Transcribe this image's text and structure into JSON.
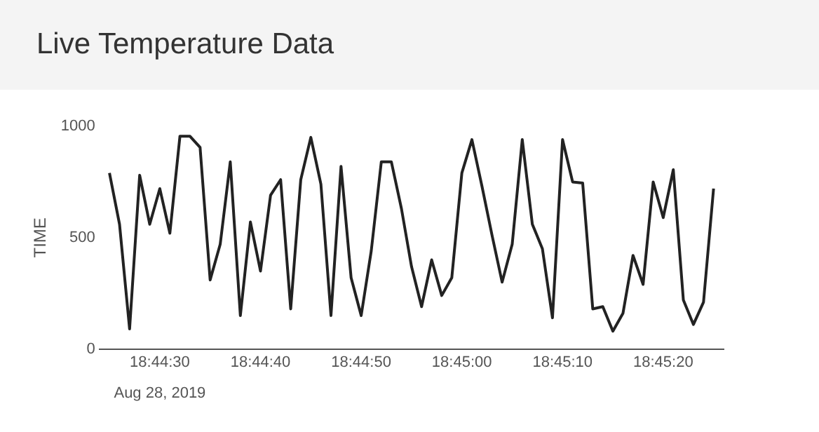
{
  "chart_data": {
    "type": "line",
    "title": "Live Temperature Data",
    "ylabel": "TIME",
    "annotations": [
      "Aug 28, 2019"
    ],
    "x": [
      "2019-08-28T18:44:25",
      "2019-08-28T18:44:26",
      "2019-08-28T18:44:27",
      "2019-08-28T18:44:28",
      "2019-08-28T18:44:29",
      "2019-08-28T18:44:30",
      "2019-08-28T18:44:31",
      "2019-08-28T18:44:32",
      "2019-08-28T18:44:33",
      "2019-08-28T18:44:34",
      "2019-08-28T18:44:35",
      "2019-08-28T18:44:36",
      "2019-08-28T18:44:37",
      "2019-08-28T18:44:38",
      "2019-08-28T18:44:39",
      "2019-08-28T18:44:40",
      "2019-08-28T18:44:41",
      "2019-08-28T18:44:42",
      "2019-08-28T18:44:43",
      "2019-08-28T18:44:44",
      "2019-08-28T18:44:45",
      "2019-08-28T18:44:46",
      "2019-08-28T18:44:47",
      "2019-08-28T18:44:48",
      "2019-08-28T18:44:49",
      "2019-08-28T18:44:50",
      "2019-08-28T18:44:51",
      "2019-08-28T18:44:52",
      "2019-08-28T18:44:53",
      "2019-08-28T18:44:54",
      "2019-08-28T18:44:55",
      "2019-08-28T18:44:56",
      "2019-08-28T18:44:57",
      "2019-08-28T18:44:58",
      "2019-08-28T18:44:59",
      "2019-08-28T18:45:00",
      "2019-08-28T18:45:01",
      "2019-08-28T18:45:02",
      "2019-08-28T18:45:03",
      "2019-08-28T18:45:04",
      "2019-08-28T18:45:05",
      "2019-08-28T18:45:06",
      "2019-08-28T18:45:07",
      "2019-08-28T18:45:08",
      "2019-08-28T18:45:09",
      "2019-08-28T18:45:10",
      "2019-08-28T18:45:11",
      "2019-08-28T18:45:12",
      "2019-08-28T18:45:13",
      "2019-08-28T18:45:14",
      "2019-08-28T18:45:15",
      "2019-08-28T18:45:16",
      "2019-08-28T18:45:17",
      "2019-08-28T18:45:18",
      "2019-08-28T18:45:19",
      "2019-08-28T18:45:20",
      "2019-08-28T18:45:21",
      "2019-08-28T18:45:22",
      "2019-08-28T18:45:23",
      "2019-08-28T18:45:24",
      "2019-08-28T18:45:25"
    ],
    "series": [
      {
        "color": "#222222",
        "values": [
          790,
          560,
          90,
          780,
          560,
          720,
          520,
          955,
          955,
          905,
          310,
          470,
          840,
          150,
          570,
          350,
          690,
          760,
          180,
          760,
          950,
          740,
          150,
          820,
          320,
          150,
          440,
          840,
          840,
          630,
          370,
          190,
          400,
          240,
          320,
          790,
          940,
          730,
          510,
          300,
          470,
          940,
          560,
          450,
          140,
          940,
          750,
          745,
          180,
          190,
          80,
          160,
          420,
          290,
          750,
          590,
          805,
          220,
          110,
          210,
          720
        ]
      }
    ],
    "xlim": [
      "2019-08-28T18:44:24",
      "2019-08-28T18:45:26"
    ],
    "xticks": [
      {
        "value": "2019-08-28T18:44:30",
        "label": "18:44:30"
      },
      {
        "value": "2019-08-28T18:44:40",
        "label": "18:44:40"
      },
      {
        "value": "2019-08-28T18:44:50",
        "label": "18:44:50"
      },
      {
        "value": "2019-08-28T18:45:00",
        "label": "18:45:00"
      },
      {
        "value": "2019-08-28T18:45:10",
        "label": "18:45:10"
      },
      {
        "value": "2019-08-28T18:45:20",
        "label": "18:45:20"
      }
    ],
    "ylim": [
      0,
      1000
    ],
    "yticks": [
      0,
      500,
      1000
    ],
    "grid": false,
    "legend": false,
    "marker": "none",
    "line_style": "solid"
  }
}
